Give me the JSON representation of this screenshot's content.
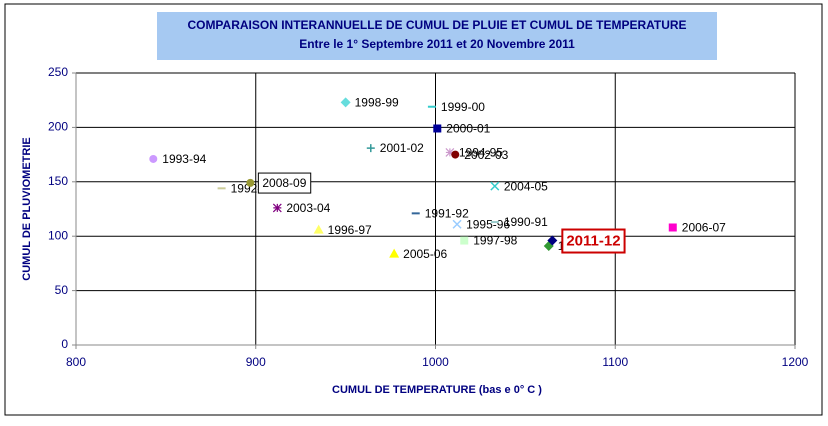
{
  "chart_data": {
    "type": "scatter",
    "title": "COMPARAISON INTERANNUELLE DE CUMUL DE PLUIE ET CUMUL DE TEMPERATURE",
    "subtitle": "Entre le 1° Septembre 2011 et 20 Novembre 2011",
    "x_label": "CUMUL DE TEMPERATURE (bas e 0° C )",
    "y_label": "CUMUL DE PLUVIOMETRIE",
    "xlim": [
      800,
      1200
    ],
    "xticks": [
      800,
      900,
      1000,
      1100,
      1200
    ],
    "ylim": [
      0,
      250
    ],
    "yticks": [
      0,
      50,
      100,
      150,
      200,
      250
    ],
    "grid": true,
    "series": [
      {
        "name": "1993-94",
        "color": "#cc99ff",
        "marker": "circle",
        "x": [
          843
        ],
        "values": [
          171
        ]
      },
      {
        "name": "1998-99",
        "color": "#66dddd",
        "marker": "diamond",
        "x": [
          950
        ],
        "values": [
          223
        ]
      },
      {
        "name": "1999-00",
        "color": "#33cccc",
        "marker": "dash",
        "x": [
          998
        ],
        "values": [
          219
        ]
      },
      {
        "name": "2000-01",
        "color": "#000099",
        "marker": "square",
        "x": [
          1001
        ],
        "values": [
          199
        ]
      },
      {
        "name": "2001-02",
        "color": "#339999",
        "marker": "plus",
        "x": [
          964
        ],
        "values": [
          181
        ]
      },
      {
        "name": "1994-95",
        "color": "#cc99cc",
        "marker": "star",
        "x": [
          1008
        ],
        "values": [
          177
        ]
      },
      {
        "name": "2002-03",
        "color": "#800000",
        "marker": "circle",
        "x": [
          1011
        ],
        "values": [
          175
        ]
      },
      {
        "name": "2004-05",
        "color": "#33cccc",
        "marker": "x",
        "x": [
          1033
        ],
        "values": [
          146
        ]
      },
      {
        "name": "1992-93",
        "color": "#cccc99",
        "marker": "dash",
        "x": [
          881
        ],
        "values": [
          144
        ]
      },
      {
        "name": "2008-09",
        "color": "#999933",
        "marker": "circle",
        "x": [
          897
        ],
        "values": [
          149
        ],
        "label_style": "box"
      },
      {
        "name": "2003-04",
        "color": "#800080",
        "marker": "star",
        "x": [
          912
        ],
        "values": [
          126
        ]
      },
      {
        "name": "1991-92",
        "color": "#336699",
        "marker": "dash",
        "x": [
          989
        ],
        "values": [
          121
        ]
      },
      {
        "name": "1996-97",
        "color": "#ffff66",
        "marker": "triangle",
        "x": [
          935
        ],
        "values": [
          106
        ]
      },
      {
        "name": "1995-96",
        "color": "#99ccff",
        "marker": "x",
        "x": [
          1012
        ],
        "values": [
          111
        ]
      },
      {
        "name": "1990-91",
        "color": "#99cccc",
        "marker": "dash",
        "x": [
          1033
        ],
        "values": [
          113
        ]
      },
      {
        "name": "1997-98",
        "color": "#ccffcc",
        "marker": "square",
        "x": [
          1016
        ],
        "values": [
          96
        ]
      },
      {
        "name": "2005-06",
        "color": "#ffff00",
        "marker": "triangle",
        "x": [
          977
        ],
        "values": [
          84
        ]
      },
      {
        "name": "1989-90",
        "color": "#339933",
        "marker": "diamond",
        "x": [
          1063
        ],
        "values": [
          91
        ]
      },
      {
        "name": "2011-12",
        "color": "#000080",
        "marker": "diamond",
        "x": [
          1065
        ],
        "values": [
          96
        ],
        "label_style": "box-red"
      },
      {
        "name": "2006-07",
        "color": "#ff00cc",
        "marker": "square",
        "x": [
          1132
        ],
        "values": [
          108
        ]
      }
    ]
  }
}
